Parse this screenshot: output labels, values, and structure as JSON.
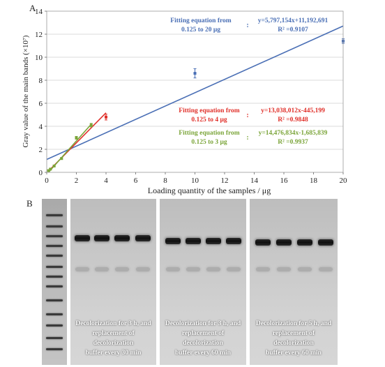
{
  "panel_a_label": "A",
  "panel_b_label": "B",
  "chart_data": {
    "type": "scatter",
    "xlabel": "Loading quantity of the samples / μg",
    "ylabel": "Gray value of the main bands (×10⁷)",
    "xlim": [
      0,
      20
    ],
    "ylim": [
      0,
      14
    ],
    "x_ticks": [
      0,
      2,
      4,
      6,
      8,
      10,
      12,
      14,
      16,
      18,
      20
    ],
    "y_ticks": [
      0,
      2,
      4,
      6,
      8,
      10,
      12,
      14
    ],
    "grid": "horizontal",
    "points": [
      {
        "x": 0.125,
        "y": 0.15,
        "err": 0.05
      },
      {
        "x": 0.25,
        "y": 0.28,
        "err": 0.05
      },
      {
        "x": 0.5,
        "y": 0.55,
        "err": 0.06
      },
      {
        "x": 1,
        "y": 1.2,
        "err": 0.08
      },
      {
        "x": 2,
        "y": 3.0,
        "err": 0.12
      },
      {
        "x": 3,
        "y": 4.1,
        "err": 0.15
      },
      {
        "x": 4,
        "y": 4.8,
        "err": 0.25
      },
      {
        "x": 10,
        "y": 8.6,
        "err": 0.4
      },
      {
        "x": 20,
        "y": 11.4,
        "err": 0.2
      }
    ],
    "fits": [
      {
        "color": "#4a6fb5",
        "x_range": [
          0,
          20
        ],
        "slope": 0.5797154,
        "intercept": 1.1192691,
        "label_line1": "Fitting equation from",
        "label_line2": "0.125 to 20 μg",
        "equation": "y=5,797,154x+11,192,691",
        "r2_label": "R² =0.9107"
      },
      {
        "color": "#e0302a",
        "x_range": [
          0.125,
          4
        ],
        "slope": 1.3038012,
        "intercept": -0.0445199,
        "label_line1": "Fitting equation from",
        "label_line2": "0.125 to 4 μg",
        "equation": "y=13,038,012x-445,199",
        "r2_label": "R² =0.9848"
      },
      {
        "color": "#7ba53a",
        "x_range": [
          0.125,
          3
        ],
        "slope": 1.4476834,
        "intercept": -0.1685839,
        "label_line1": "Fitting equation from",
        "label_line2": "0.125 to 3 μg",
        "equation": "y=14,476,834x-1,685,839",
        "r2_label": "R² =0.9937"
      }
    ],
    "separator": ":"
  },
  "gel": {
    "panels": [
      {
        "caption": "Decolorization for 3 h, and\nreplacement of decolorization\nbuffer every 30 min"
      },
      {
        "caption": "Decolorization for 3 h, and\nreplacement of decolorization\nbuffer every 60 min"
      },
      {
        "caption": "Decolorization for 5 h, and\nreplacement of decolorization\nbuffer every 60 min"
      }
    ]
  }
}
